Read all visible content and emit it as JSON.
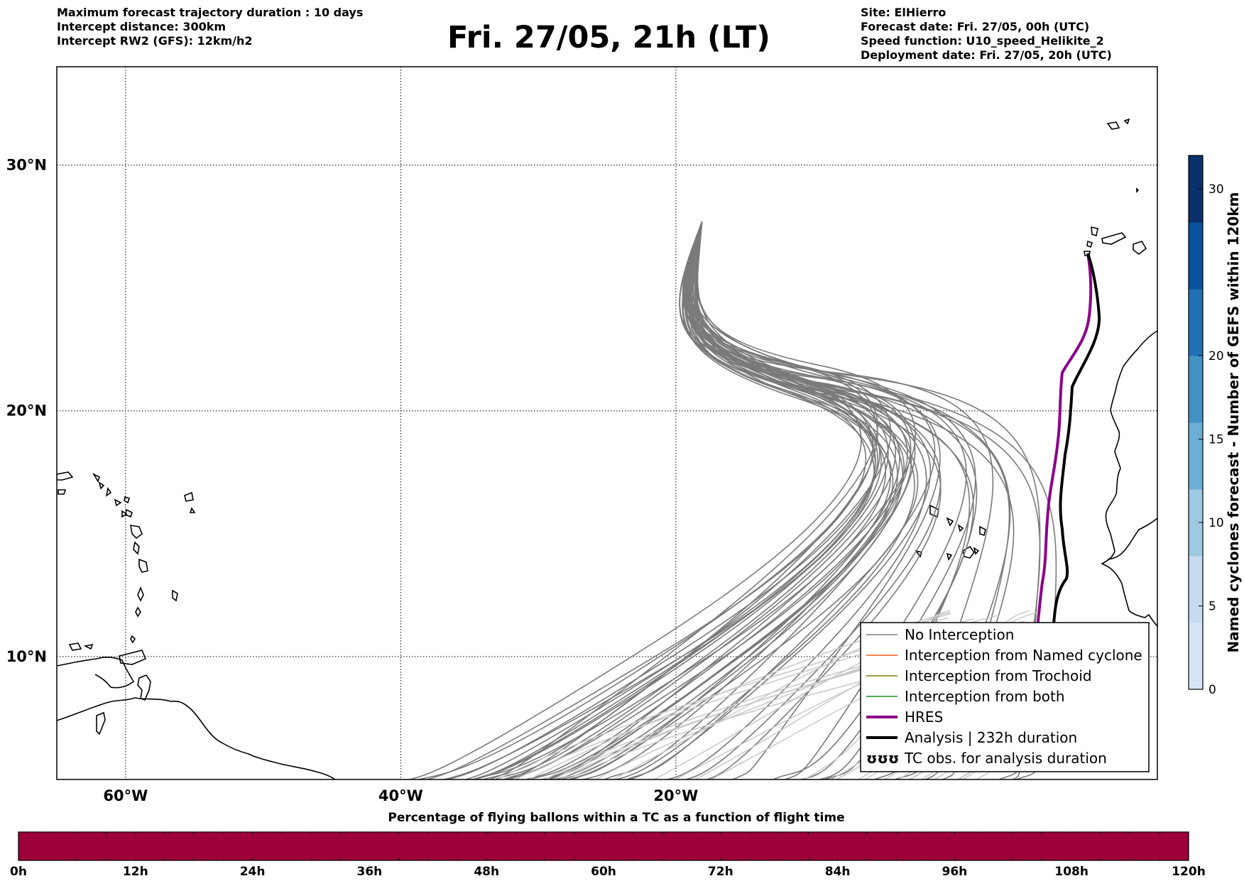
{
  "header": {
    "left_lines": [
      "Maximum forecast trajectory duration : 10 days",
      "Intercept distance: 300km",
      "Intercept RW2 (GFS):  12km/h2"
    ],
    "title": "Fri. 27/05, 21h (LT)",
    "right_lines": [
      "Site: ElHierro",
      "Forecast date: Fri. 27/05, 00h (UTC)",
      "Speed function: U10_speed_Helikite_2",
      "Deployment date: Fri. 27/05, 20h (UTC)"
    ]
  },
  "map": {
    "lon_range": [
      -65,
      15
    ],
    "lat_range": [
      5,
      34
    ],
    "lat_ticks": [
      {
        "value": 30,
        "label": "30°N"
      },
      {
        "value": 20,
        "label": "20°N"
      },
      {
        "value": 10,
        "label": "10°N"
      }
    ],
    "lon_ticks": [
      {
        "value": -60,
        "label": "60°W"
      },
      {
        "value": -40,
        "label": "40°W"
      },
      {
        "value": -20,
        "label": "20°W"
      }
    ],
    "grid": true,
    "site": {
      "name": "ElHierro",
      "lon": -18.1,
      "lat": 27.7
    }
  },
  "legend": {
    "position": "lower-right",
    "items": [
      {
        "label": "No Interception",
        "color": "#7f7f7f",
        "style": "thin"
      },
      {
        "label": "Interception from Named cyclone",
        "color": "#ff5a1f",
        "style": "thin"
      },
      {
        "label": "Interception from Trochoid",
        "color": "#808000",
        "style": "thin"
      },
      {
        "label": "Interception from both",
        "color": "#1e8c1e",
        "style": "thin"
      },
      {
        "label": "HRES",
        "color": "#8b008b",
        "style": "thick"
      },
      {
        "label": "Analysis | 232h duration",
        "color": "#000000",
        "style": "thick"
      },
      {
        "label": "TC obs. for analysis duration",
        "color": "#000000",
        "style": "marker",
        "marker_glyph": "ʊʊʊ"
      }
    ]
  },
  "colorbar_right": {
    "label": "Named cyclones forecast - Number of GEFS within 120km",
    "min": 0,
    "max": 32,
    "ticks": [
      0,
      5,
      10,
      15,
      20,
      30
    ],
    "colors": [
      "#d6e5f5",
      "#c6dbef",
      "#9ecae1",
      "#6baed6",
      "#4292c6",
      "#2171b5",
      "#08519c",
      "#08306b"
    ]
  },
  "colorbar_bottom": {
    "title": "Percentage of flying ballons within a TC as a function of flight time",
    "fill_color": "#9e003a",
    "ticks": [
      "0h",
      "12h",
      "24h",
      "36h",
      "48h",
      "60h",
      "72h",
      "84h",
      "96h",
      "108h",
      "120h"
    ],
    "percent_values": [
      0,
      0,
      0,
      0,
      0,
      0,
      0,
      0,
      0,
      0
    ]
  }
}
